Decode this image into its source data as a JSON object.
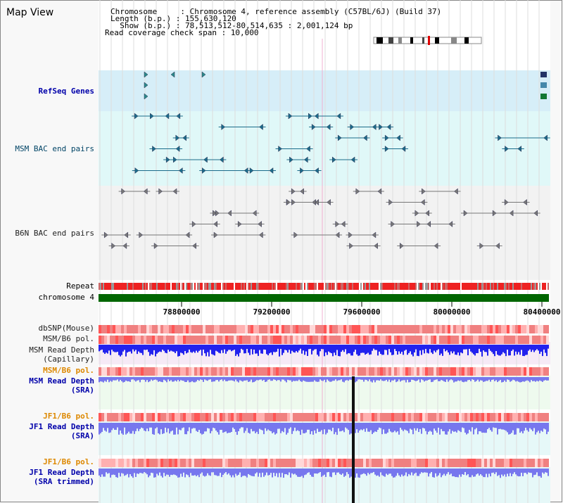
{
  "title": "Map View",
  "info": {
    "chromosome": "Chromosome     : Chromosome 4, reference assembly (C57BL/6J) (Build 37)",
    "length": "Length (b.p.) : 155,630,120",
    "show": "  Show (b.p.) : 78,513,512-80,514,635 : 2,001,124 bp",
    "coverage": "Read coverage check span : 10,000"
  },
  "tracks": {
    "refseq": "RefSeq Genes",
    "msm_bac": "MSM BAC end pairs",
    "b6n_bac": "B6N BAC end pairs",
    "repeat": "Repeat",
    "chromosome": "chromosome 4",
    "dbsnp": "dbSNP(Mouse)",
    "msm_b6_pol_1": "MSM/B6 pol.",
    "msm_depth_cap_1": "MSM Read Depth",
    "msm_depth_cap_2": "(Capillary)",
    "msm_b6_pol_2": "MSM/B6 pol.",
    "msm_depth_sra_1": "MSM Read Depth",
    "msm_depth_sra_2": "(SRA)",
    "jf1_b6_pol_1": "JF1/B6 pol.",
    "jf1_depth_sra_1": "JF1 Read Depth",
    "jf1_depth_sra_2": "(SRA)",
    "jf1_b6_pol_2": "JF1/B6 pol.",
    "jf1_depth_trim_1": "JF1 Read Depth",
    "jf1_depth_trim_2": "(SRA trimmed)"
  },
  "axis_ticks": [
    "78800000",
    "79200000",
    "79600000",
    "80000000",
    "80400000"
  ],
  "colors": {
    "refseq_bg": "#d6eef8",
    "msm_bac_bg": "#e0f8f8",
    "b6n_bac_bg": "#f2f2f2",
    "chromosome_bar": "#006600",
    "repeat": "#ee2222",
    "msm_depth_capillary": "#2222ee",
    "sra_depth": "#7777ee"
  }
}
